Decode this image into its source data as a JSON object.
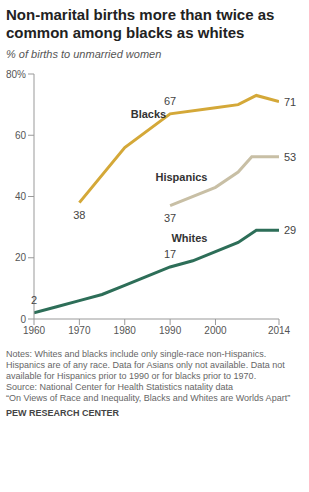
{
  "chart_data": {
    "type": "line",
    "title": "Non-marital births more than twice as common among blacks as whites",
    "subtitle": "% of births to unmarried women",
    "xlim": [
      1960,
      2014
    ],
    "xticks": [
      1960,
      1970,
      1980,
      1990,
      2000,
      2014
    ],
    "ylim": [
      0,
      80
    ],
    "yticks": [
      0,
      20,
      40,
      60,
      {
        "value": 80,
        "label": "80%"
      }
    ],
    "grid": false,
    "series": [
      {
        "name": "Blacks",
        "color": "#d4a838",
        "x": [
          1970,
          1980,
          1990,
          2000,
          2005,
          2009,
          2014
        ],
        "values": [
          38,
          56,
          67,
          69,
          70,
          73,
          71
        ],
        "value_labels": [
          "38",
          null,
          "67",
          null,
          null,
          null,
          "71"
        ]
      },
      {
        "name": "Hispanics",
        "color": "#c8bfa5",
        "x": [
          1990,
          2000,
          2005,
          2008,
          2014
        ],
        "values": [
          37,
          43,
          48,
          53,
          53
        ],
        "value_labels": [
          "37",
          null,
          null,
          null,
          "53"
        ]
      },
      {
        "name": "Whites",
        "color": "#2d6e58",
        "x": [
          1960,
          1965,
          1970,
          1975,
          1980,
          1985,
          1990,
          1995,
          2000,
          2005,
          2009,
          2014
        ],
        "values": [
          2,
          4,
          6,
          8,
          11,
          14,
          17,
          19,
          22,
          25,
          29,
          29
        ],
        "value_labels": [
          "2",
          null,
          null,
          null,
          null,
          null,
          "17",
          null,
          null,
          null,
          null,
          "29"
        ]
      }
    ],
    "notes": "Notes: Whites and blacks include only single-race non-Hispanics. Hispanics are of any race. Data for Asians only not available. Data not available for Hispanics prior to 1990 or for blacks prior to 1970.",
    "source": "Source: National Center for Health Statistics natality data",
    "report": "“On Views of Race and Inequality, Blacks and Whites are Worlds Apart”",
    "credit": "PEW RESEARCH CENTER"
  }
}
